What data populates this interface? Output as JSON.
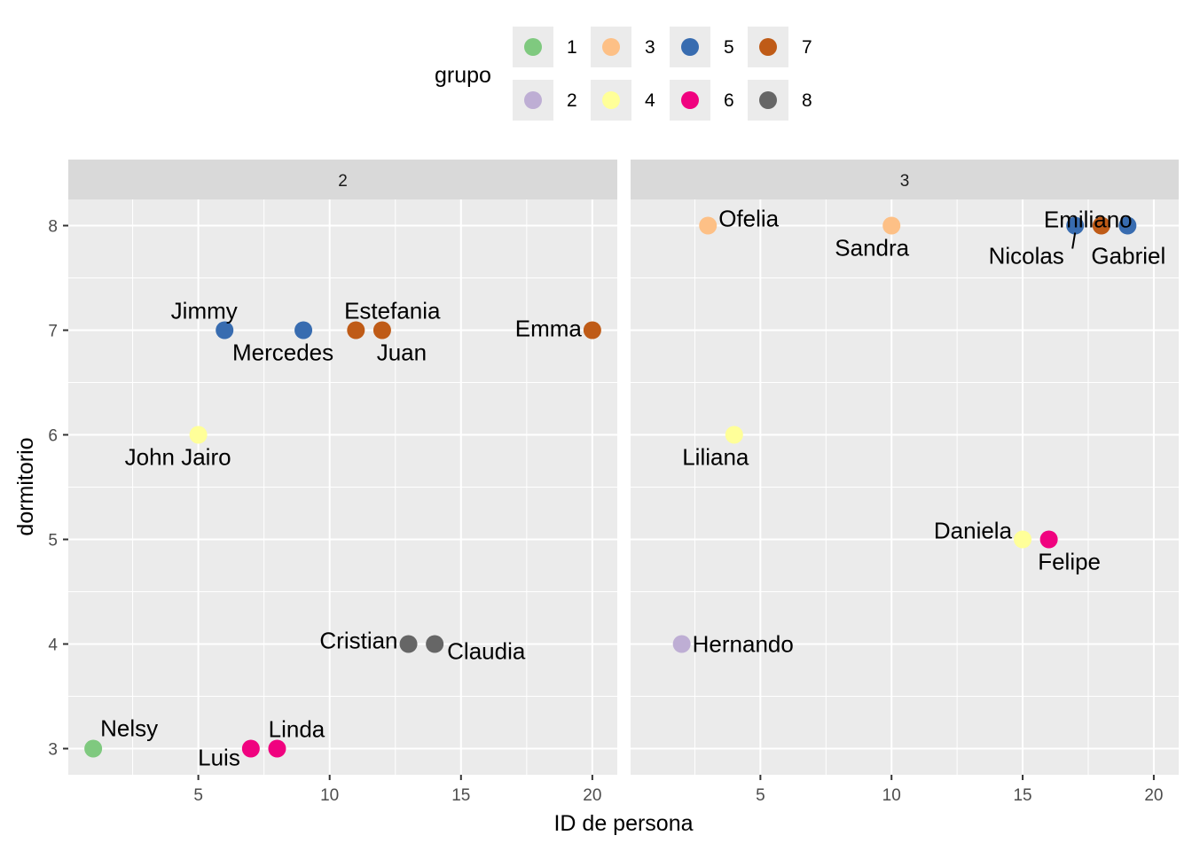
{
  "chart_data": {
    "type": "scatter",
    "xlabel": "ID de persona",
    "ylabel": "dormitorio",
    "xlim": [
      0.05,
      20.95
    ],
    "ylim": [
      2.75,
      8.25
    ],
    "x_ticks": [
      5,
      10,
      15,
      20
    ],
    "y_ticks": [
      3,
      4,
      5,
      6,
      7,
      8
    ],
    "grid": true,
    "legend": {
      "title": "grupo",
      "placement": "top",
      "entries": [
        {
          "label": "1",
          "color": "#7FC97F"
        },
        {
          "label": "2",
          "color": "#BEAED4"
        },
        {
          "label": "3",
          "color": "#FDC086"
        },
        {
          "label": "4",
          "color": "#FFFF99"
        },
        {
          "label": "5",
          "color": "#386CB0"
        },
        {
          "label": "6",
          "color": "#F0027F"
        },
        {
          "label": "7",
          "color": "#BF5B17"
        },
        {
          "label": "8",
          "color": "#666666"
        }
      ]
    },
    "facets": [
      {
        "label": "2",
        "points": [
          {
            "name": "Nelsy",
            "x": 1,
            "y": 3,
            "grupo": "1"
          },
          {
            "name": "John Jairo",
            "x": 5,
            "y": 6,
            "grupo": "4"
          },
          {
            "name": "Jimmy",
            "x": 6,
            "y": 7,
            "grupo": "5"
          },
          {
            "name": "Luis",
            "x": 7,
            "y": 3,
            "grupo": "6"
          },
          {
            "name": "Linda",
            "x": 8,
            "y": 3,
            "grupo": "6"
          },
          {
            "name": "Mercedes",
            "x": 9,
            "y": 7,
            "grupo": "5"
          },
          {
            "name": "Estefania",
            "x": 11,
            "y": 7,
            "grupo": "7"
          },
          {
            "name": "Juan",
            "x": 12,
            "y": 7,
            "grupo": "7"
          },
          {
            "name": "Cristian",
            "x": 13,
            "y": 4,
            "grupo": "8"
          },
          {
            "name": "Claudia",
            "x": 14,
            "y": 4,
            "grupo": "8"
          },
          {
            "name": "Emma",
            "x": 20,
            "y": 7,
            "grupo": "7"
          }
        ]
      },
      {
        "label": "3",
        "points": [
          {
            "name": "Hernando",
            "x": 2,
            "y": 4,
            "grupo": "2"
          },
          {
            "name": "Ofelia",
            "x": 3,
            "y": 8,
            "grupo": "3"
          },
          {
            "name": "Liliana",
            "x": 4,
            "y": 6,
            "grupo": "4"
          },
          {
            "name": "Sandra",
            "x": 10,
            "y": 8,
            "grupo": "3"
          },
          {
            "name": "Daniela",
            "x": 15,
            "y": 5,
            "grupo": "4"
          },
          {
            "name": "Felipe",
            "x": 16,
            "y": 5,
            "grupo": "6"
          },
          {
            "name": "Nicolas",
            "x": 17,
            "y": 8,
            "grupo": "5"
          },
          {
            "name": "Emiliano",
            "x": 18,
            "y": 8,
            "grupo": "7"
          },
          {
            "name": "Gabriel",
            "x": 19,
            "y": 8,
            "grupo": "5"
          }
        ]
      }
    ]
  }
}
